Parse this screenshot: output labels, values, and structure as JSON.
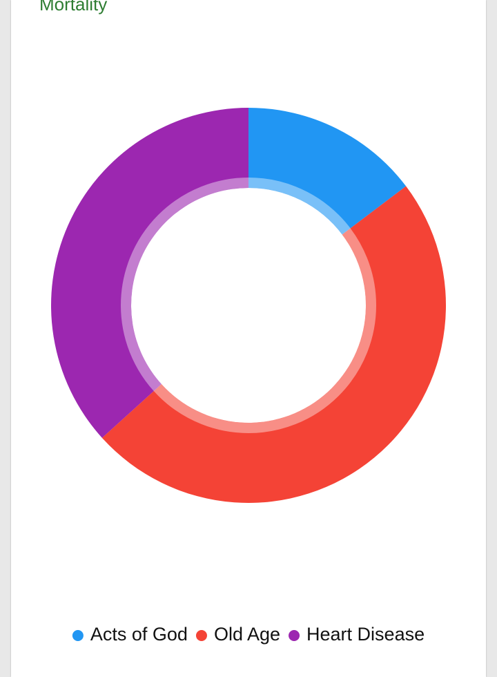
{
  "chart_data": {
    "type": "donut",
    "title": "Mortality",
    "categories": [
      "Acts of God",
      "Old Age",
      "Heart Disease"
    ],
    "values": [
      14.7,
      48.6,
      36.7
    ],
    "colors": [
      "#2196f3",
      "#f44336",
      "#9c27b0"
    ],
    "legend": "bottom"
  }
}
